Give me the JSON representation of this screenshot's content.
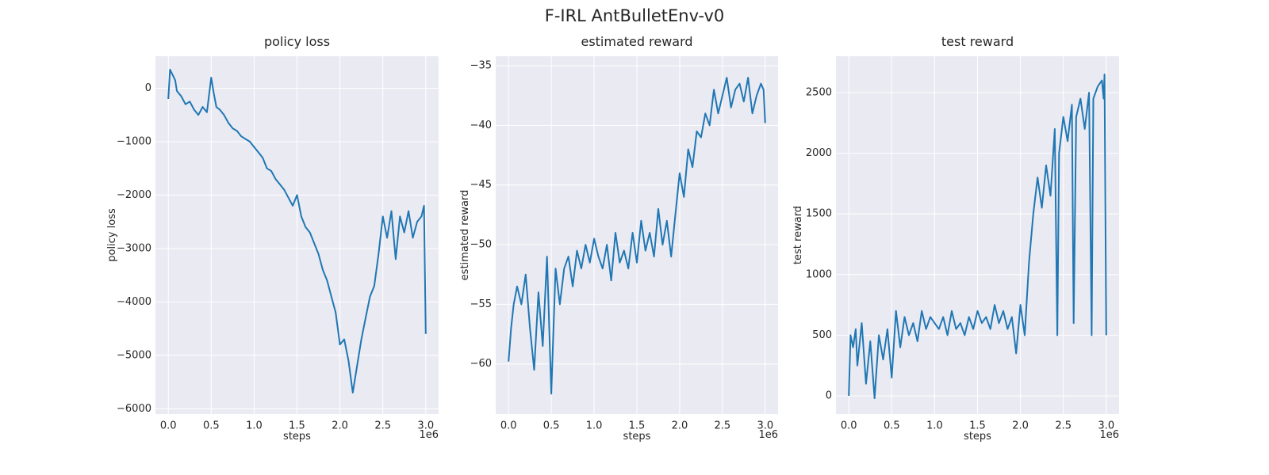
{
  "figure": {
    "title": "F-IRL AntBulletEnv-v0"
  },
  "style": {
    "line_color": "#1f77b4",
    "axes_background": "#eaeaf2",
    "grid_color": "#ffffff",
    "text_color": "#262626"
  },
  "chart_data": [
    {
      "type": "line",
      "title": "policy loss",
      "xlabel": "steps",
      "ylabel": "policy loss",
      "x_offset_label": "1e6",
      "xlim": [
        -0.15,
        3.15
      ],
      "ylim": [
        -6100,
        600
      ],
      "xticks": [
        0.0,
        0.5,
        1.0,
        1.5,
        2.0,
        2.5,
        3.0
      ],
      "xtick_labels": [
        "0.0",
        "0.5",
        "1.0",
        "1.5",
        "2.0",
        "2.5",
        "3.0"
      ],
      "yticks": [
        0,
        -1000,
        -2000,
        -3000,
        -4000,
        -5000,
        -6000
      ],
      "ytick_labels": [
        "0",
        "−1000",
        "−2000",
        "−3000",
        "−4000",
        "−5000",
        "−6000"
      ],
      "grid": true,
      "series": [
        {
          "x": [
            0.0,
            0.02,
            0.05,
            0.08,
            0.1,
            0.15,
            0.2,
            0.25,
            0.3,
            0.35,
            0.4,
            0.45,
            0.5,
            0.53,
            0.56,
            0.6,
            0.65,
            0.7,
            0.75,
            0.8,
            0.85,
            0.9,
            0.95,
            1.0,
            1.05,
            1.1,
            1.15,
            1.2,
            1.25,
            1.3,
            1.35,
            1.4,
            1.45,
            1.5,
            1.55,
            1.6,
            1.65,
            1.7,
            1.75,
            1.8,
            1.85,
            1.9,
            1.95,
            2.0,
            2.05,
            2.1,
            2.15,
            2.2,
            2.25,
            2.3,
            2.35,
            2.4,
            2.45,
            2.5,
            2.55,
            2.6,
            2.65,
            2.7,
            2.75,
            2.8,
            2.85,
            2.9,
            2.95,
            2.98,
            3.0
          ],
          "y": [
            -200,
            350,
            250,
            150,
            -50,
            -150,
            -300,
            -250,
            -400,
            -500,
            -350,
            -450,
            200,
            -100,
            -350,
            -400,
            -500,
            -650,
            -750,
            -800,
            -900,
            -950,
            -1000,
            -1100,
            -1200,
            -1300,
            -1500,
            -1550,
            -1700,
            -1800,
            -1900,
            -2050,
            -2200,
            -2000,
            -2400,
            -2600,
            -2700,
            -2900,
            -3100,
            -3400,
            -3600,
            -3900,
            -4200,
            -4800,
            -4700,
            -5100,
            -5700,
            -5200,
            -4700,
            -4300,
            -3900,
            -3700,
            -3100,
            -2400,
            -2800,
            -2300,
            -3200,
            -2400,
            -2700,
            -2300,
            -2800,
            -2500,
            -2400,
            -2200,
            -4600
          ]
        }
      ]
    },
    {
      "type": "line",
      "title": "estimated reward",
      "xlabel": "steps",
      "ylabel": "estimated reward",
      "x_offset_label": "1e6",
      "xlim": [
        -0.15,
        3.15
      ],
      "ylim": [
        -64.2,
        -34.2
      ],
      "xticks": [
        0.0,
        0.5,
        1.0,
        1.5,
        2.0,
        2.5,
        3.0
      ],
      "xtick_labels": [
        "0.0",
        "0.5",
        "1.0",
        "1.5",
        "2.0",
        "2.5",
        "3.0"
      ],
      "yticks": [
        -35,
        -40,
        -45,
        -50,
        -55,
        -60
      ],
      "ytick_labels": [
        "−35",
        "−40",
        "−45",
        "−50",
        "−55",
        "−60"
      ],
      "grid": true,
      "series": [
        {
          "x": [
            0.0,
            0.03,
            0.06,
            0.1,
            0.15,
            0.2,
            0.25,
            0.3,
            0.35,
            0.4,
            0.45,
            0.5,
            0.53,
            0.55,
            0.6,
            0.65,
            0.7,
            0.75,
            0.8,
            0.85,
            0.9,
            0.95,
            1.0,
            1.05,
            1.1,
            1.15,
            1.2,
            1.25,
            1.3,
            1.35,
            1.4,
            1.45,
            1.5,
            1.55,
            1.6,
            1.65,
            1.7,
            1.75,
            1.8,
            1.85,
            1.9,
            1.95,
            2.0,
            2.05,
            2.1,
            2.15,
            2.2,
            2.25,
            2.3,
            2.35,
            2.4,
            2.45,
            2.5,
            2.55,
            2.6,
            2.65,
            2.7,
            2.75,
            2.8,
            2.85,
            2.9,
            2.95,
            2.98,
            3.0
          ],
          "y": [
            -59.8,
            -57.0,
            -55.0,
            -53.5,
            -55.0,
            -52.5,
            -57.0,
            -60.5,
            -54.0,
            -58.5,
            -51.0,
            -62.5,
            -56.0,
            -52.0,
            -55.0,
            -52.0,
            -51.0,
            -53.5,
            -50.5,
            -52.0,
            -50.0,
            -51.5,
            -49.5,
            -51.0,
            -52.0,
            -50.0,
            -53.0,
            -49.0,
            -51.5,
            -50.5,
            -52.0,
            -49.0,
            -51.5,
            -48.0,
            -50.5,
            -49.0,
            -51.0,
            -47.0,
            -50.0,
            -48.0,
            -51.0,
            -47.5,
            -44.0,
            -46.0,
            -42.0,
            -43.5,
            -40.5,
            -41.0,
            -39.0,
            -40.0,
            -37.0,
            -39.0,
            -37.5,
            -36.0,
            -38.5,
            -37.0,
            -36.5,
            -38.0,
            -36.0,
            -39.0,
            -37.5,
            -36.5,
            -37.0,
            -39.8
          ]
        }
      ]
    },
    {
      "type": "line",
      "title": "test reward",
      "xlabel": "steps",
      "ylabel": "test reward",
      "x_offset_label": "1e6",
      "xlim": [
        -0.15,
        3.15
      ],
      "ylim": [
        -150,
        2800
      ],
      "xticks": [
        0.0,
        0.5,
        1.0,
        1.5,
        2.0,
        2.5,
        3.0
      ],
      "xtick_labels": [
        "0.0",
        "0.5",
        "1.0",
        "1.5",
        "2.0",
        "2.5",
        "3.0"
      ],
      "yticks": [
        0,
        500,
        1000,
        1500,
        2000,
        2500
      ],
      "ytick_labels": [
        "0",
        "500",
        "1000",
        "1500",
        "2000",
        "2500"
      ],
      "grid": true,
      "series": [
        {
          "x": [
            0.0,
            0.02,
            0.05,
            0.08,
            0.1,
            0.15,
            0.2,
            0.25,
            0.3,
            0.35,
            0.4,
            0.45,
            0.5,
            0.55,
            0.6,
            0.65,
            0.7,
            0.75,
            0.8,
            0.85,
            0.9,
            0.95,
            1.0,
            1.05,
            1.1,
            1.15,
            1.2,
            1.25,
            1.3,
            1.35,
            1.4,
            1.45,
            1.5,
            1.55,
            1.6,
            1.65,
            1.7,
            1.75,
            1.8,
            1.85,
            1.9,
            1.95,
            2.0,
            2.05,
            2.1,
            2.15,
            2.2,
            2.25,
            2.3,
            2.35,
            2.4,
            2.43,
            2.45,
            2.5,
            2.55,
            2.6,
            2.62,
            2.65,
            2.7,
            2.75,
            2.8,
            2.83,
            2.85,
            2.9,
            2.95,
            2.97,
            2.98,
            3.0
          ],
          "y": [
            0,
            500,
            400,
            550,
            250,
            600,
            100,
            450,
            -20,
            500,
            300,
            550,
            150,
            700,
            400,
            650,
            500,
            600,
            450,
            700,
            550,
            650,
            600,
            550,
            650,
            500,
            700,
            550,
            600,
            500,
            650,
            550,
            700,
            600,
            650,
            550,
            750,
            600,
            700,
            550,
            650,
            350,
            750,
            500,
            1100,
            1500,
            1800,
            1550,
            1900,
            1650,
            2200,
            500,
            2000,
            2300,
            2100,
            2400,
            600,
            2300,
            2450,
            2200,
            2500,
            500,
            2450,
            2550,
            2600,
            2450,
            2650,
            500
          ]
        }
      ]
    }
  ]
}
